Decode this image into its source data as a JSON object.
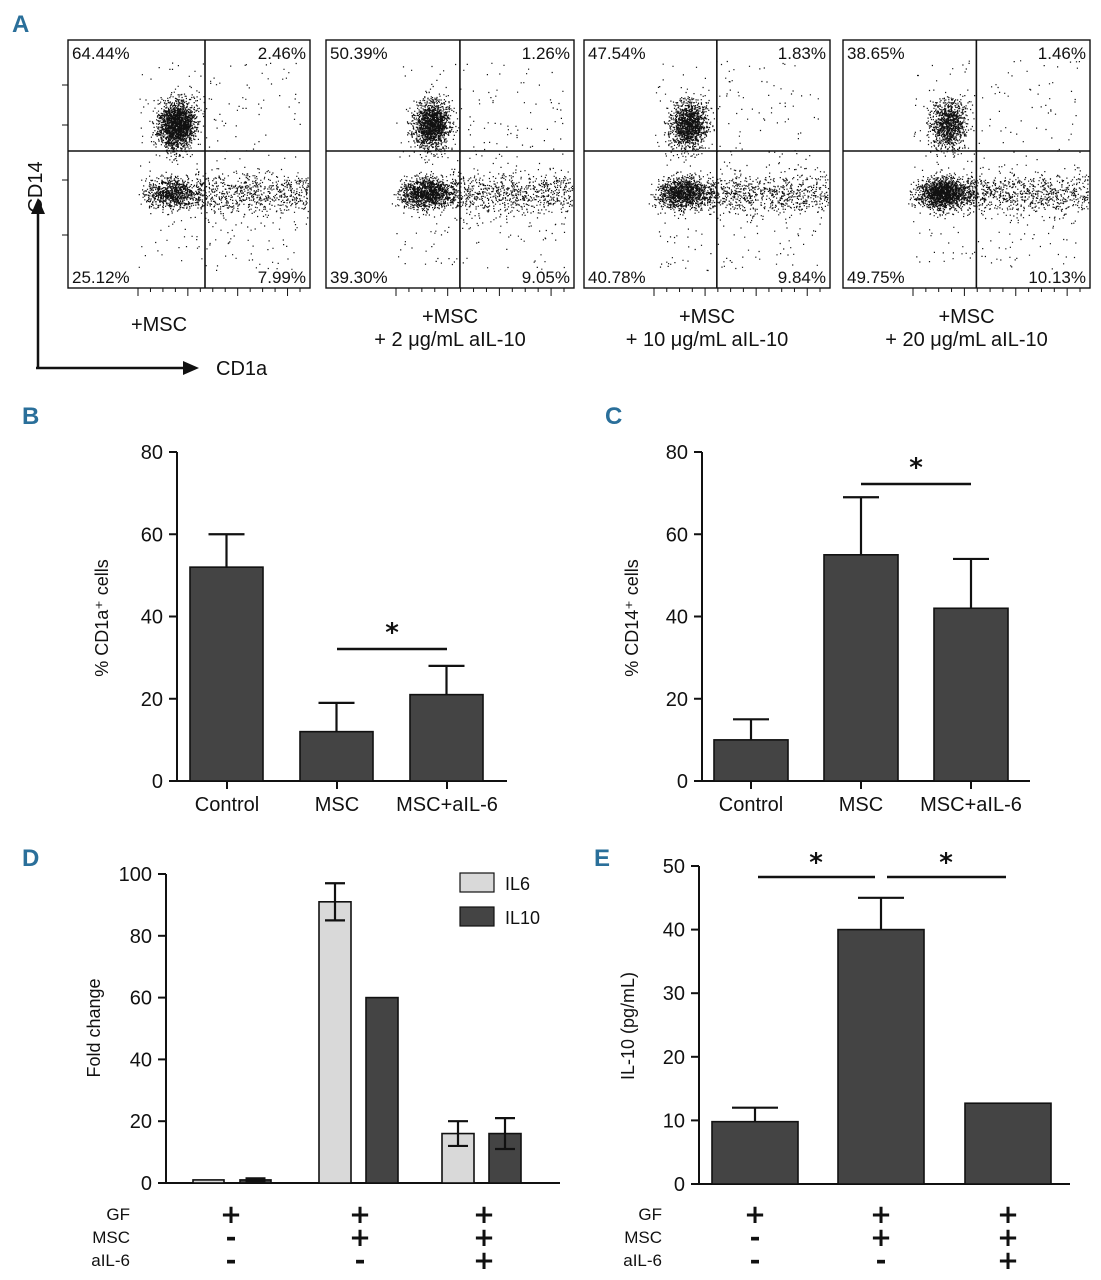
{
  "colors": {
    "bar_dark": "#444444",
    "bar_light": "#d9d9d9",
    "axis": "#111111",
    "panel_label": "#2a6f9a"
  },
  "panel_labels": {
    "a": "A",
    "b": "B",
    "c": "C",
    "d": "D",
    "e": "E"
  },
  "panelA": {
    "y_axis_label": "CD14",
    "x_axis_label": "CD1a",
    "plots": [
      {
        "q_ul": "64.44%",
        "q_ur": "2.46%",
        "q_ll": "25.12%",
        "q_lr": "7.99%",
        "cap1": "+MSC",
        "cap2": ""
      },
      {
        "q_ul": "50.39%",
        "q_ur": "1.26%",
        "q_ll": "39.30%",
        "q_lr": "9.05%",
        "cap1": "+MSC",
        "cap2": "+ 2 μg/mL aIL-10"
      },
      {
        "q_ul": "47.54%",
        "q_ur": "1.83%",
        "q_ll": "40.78%",
        "q_lr": "9.84%",
        "cap1": "+MSC",
        "cap2": "+ 10 μg/mL aIL-10"
      },
      {
        "q_ul": "38.65%",
        "q_ur": "1.46%",
        "q_ll": "49.75%",
        "q_lr": "10.13%",
        "cap1": "+MSC",
        "cap2": "+ 20 μg/mL aIL-10"
      }
    ]
  },
  "chart_data": [
    {
      "panel": "B",
      "type": "bar",
      "categories": [
        "Control",
        "MSC",
        "MSC+aIL-6"
      ],
      "values": [
        52,
        12,
        21
      ],
      "errors": [
        8,
        7,
        7
      ],
      "ylabel": "% CD1a⁺ cells",
      "ylim": [
        0,
        80
      ],
      "yticks": [
        "0",
        "20",
        "40",
        "60",
        "80"
      ],
      "significance": [
        {
          "from": 1,
          "to": 2,
          "label": "*"
        }
      ]
    },
    {
      "panel": "C",
      "type": "bar",
      "categories": [
        "Control",
        "MSC",
        "MSC+aIL-6"
      ],
      "values": [
        10,
        55,
        42
      ],
      "errors": [
        5,
        14,
        12
      ],
      "ylabel": "% CD14⁺ cells",
      "ylim": [
        0,
        80
      ],
      "yticks": [
        "0",
        "20",
        "40",
        "60",
        "80"
      ],
      "significance": [
        {
          "from": 1,
          "to": 2,
          "label": "*"
        }
      ]
    },
    {
      "panel": "D",
      "type": "bar",
      "groups": 3,
      "series": [
        {
          "name": "IL6",
          "values": [
            1,
            91,
            16
          ],
          "errors": [
            0,
            6,
            4
          ]
        },
        {
          "name": "IL10",
          "values": [
            1,
            60,
            16
          ],
          "errors": [
            0.5,
            0,
            5
          ]
        }
      ],
      "ylabel": "Fold change",
      "ylim": [
        0,
        100
      ],
      "yticks": [
        "0",
        "20",
        "40",
        "60",
        "80",
        "100"
      ],
      "legend_position": "top-right",
      "conditions": [
        {
          "label": "GF",
          "signs": [
            "+",
            "+",
            "+"
          ]
        },
        {
          "label": "MSC",
          "signs": [
            "-",
            "+",
            "+"
          ]
        },
        {
          "label": "aIL-6",
          "signs": [
            "-",
            "-",
            "+"
          ]
        }
      ]
    },
    {
      "panel": "E",
      "type": "bar",
      "values": [
        9.8,
        40,
        12.7
      ],
      "errors": [
        2.2,
        5,
        0
      ],
      "ylabel": "IL-10 (pg/mL)",
      "ylim": [
        0,
        50
      ],
      "yticks": [
        "0",
        "10",
        "20",
        "30",
        "40",
        "50"
      ],
      "significance": [
        {
          "from": 0,
          "to": 1,
          "label": "*"
        },
        {
          "from": 1,
          "to": 2,
          "label": "*"
        }
      ],
      "conditions": [
        {
          "label": "GF",
          "signs": [
            "+",
            "+",
            "+"
          ]
        },
        {
          "label": "MSC",
          "signs": [
            "-",
            "+",
            "+"
          ]
        },
        {
          "label": "aIL-6",
          "signs": [
            "-",
            "-",
            "+"
          ]
        }
      ]
    }
  ]
}
